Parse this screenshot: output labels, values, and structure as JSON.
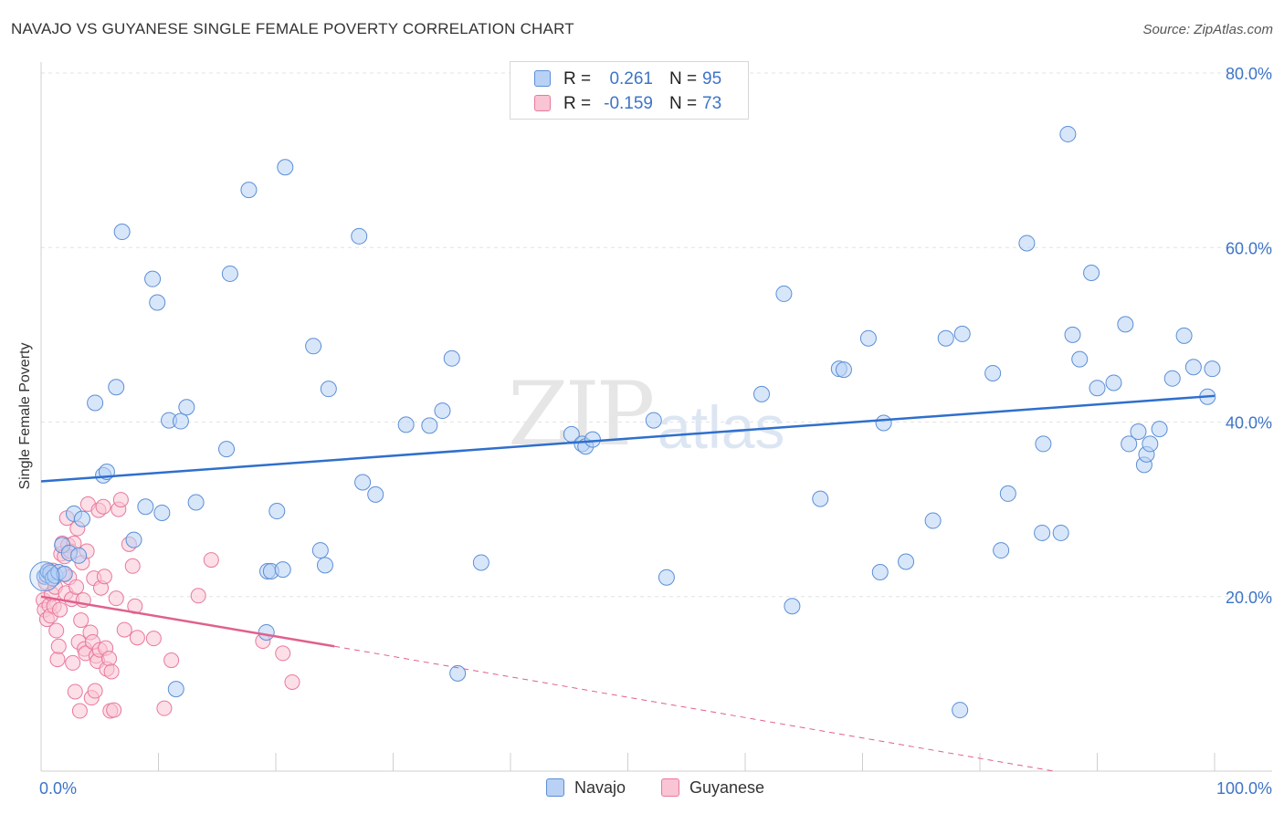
{
  "title": "NAVAJO VS GUYANESE SINGLE FEMALE POVERTY CORRELATION CHART",
  "source": "Source: ZipAtlas.com",
  "watermark": {
    "zip": "ZIP",
    "atlas": "atlas"
  },
  "legend": {
    "rows": [
      {
        "r_label": "R =",
        "r_value": "0.261",
        "n_label": "N =",
        "n_value": "95"
      },
      {
        "r_label": "R =",
        "r_value": "-0.159",
        "n_label": "N =",
        "n_value": "73"
      }
    ]
  },
  "bottom_legend": {
    "navajo": "Navajo",
    "guyanese": "Guyanese"
  },
  "colors": {
    "navajo_fill": "#b8d1f5",
    "navajo_stroke": "#5b8fd6",
    "navajo_line": "#2f6fcc",
    "guyanese_fill": "#f9c4d4",
    "guyanese_stroke": "#e8799d",
    "guyanese_line": "#e0608d",
    "tick_text": "#3d74c7"
  },
  "chart_data": {
    "type": "scatter",
    "title": "NAVAJO VS GUYANESE SINGLE FEMALE POVERTY CORRELATION CHART",
    "xlabel": "",
    "ylabel": "Single Female Poverty",
    "xlim": [
      0,
      100
    ],
    "ylim": [
      0,
      80
    ],
    "x_ticks": [
      {
        "value": 0,
        "label": "0.0%"
      },
      {
        "value": 100,
        "label": "100.0%"
      }
    ],
    "y_ticks": [
      {
        "value": 20,
        "label": "20.0%"
      },
      {
        "value": 40,
        "label": "40.0%"
      },
      {
        "value": 60,
        "label": "60.0%"
      },
      {
        "value": 80,
        "label": "80.0%"
      }
    ],
    "series": [
      {
        "name": "Navajo",
        "r": 0.261,
        "n": 95,
        "trend": {
          "x0": 0,
          "y0": 33.2,
          "x1": 100,
          "y1": 43.0,
          "dashed_to": null
        },
        "points": [
          [
            0.3,
            22.3
          ],
          [
            0.5,
            22.5
          ],
          [
            0.6,
            22.9
          ],
          [
            0.8,
            22.7
          ],
          [
            1.0,
            22.1
          ],
          [
            1.2,
            22.4
          ],
          [
            1.5,
            22.8
          ],
          [
            1.8,
            25.9
          ],
          [
            2.0,
            22.6
          ],
          [
            2.4,
            25.0
          ],
          [
            2.8,
            29.5
          ],
          [
            3.2,
            24.7
          ],
          [
            3.5,
            28.9
          ],
          [
            4.6,
            42.2
          ],
          [
            5.3,
            33.9
          ],
          [
            5.6,
            34.3
          ],
          [
            6.4,
            44.0
          ],
          [
            6.9,
            61.8
          ],
          [
            7.9,
            26.5
          ],
          [
            8.9,
            30.3
          ],
          [
            9.5,
            56.4
          ],
          [
            9.9,
            53.7
          ],
          [
            10.3,
            29.6
          ],
          [
            10.9,
            40.2
          ],
          [
            11.5,
            9.4
          ],
          [
            11.9,
            40.1
          ],
          [
            12.4,
            41.7
          ],
          [
            13.2,
            30.8
          ],
          [
            15.8,
            36.9
          ],
          [
            16.1,
            57.0
          ],
          [
            17.7,
            66.6
          ],
          [
            19.2,
            15.9
          ],
          [
            19.3,
            22.9
          ],
          [
            19.6,
            22.9
          ],
          [
            20.1,
            29.8
          ],
          [
            20.6,
            23.1
          ],
          [
            20.8,
            69.2
          ],
          [
            23.2,
            48.7
          ],
          [
            23.8,
            25.3
          ],
          [
            24.2,
            23.6
          ],
          [
            24.5,
            43.8
          ],
          [
            27.1,
            61.3
          ],
          [
            27.4,
            33.1
          ],
          [
            28.5,
            31.7
          ],
          [
            31.1,
            39.7
          ],
          [
            33.1,
            39.6
          ],
          [
            34.2,
            41.3
          ],
          [
            35.0,
            47.3
          ],
          [
            35.5,
            11.2
          ],
          [
            37.5,
            23.9
          ],
          [
            45.2,
            38.6
          ],
          [
            46.1,
            37.5
          ],
          [
            46.4,
            37.2
          ],
          [
            47.0,
            38.0
          ],
          [
            52.2,
            40.2
          ],
          [
            53.3,
            22.2
          ],
          [
            61.4,
            43.2
          ],
          [
            63.3,
            54.7
          ],
          [
            64.0,
            18.9
          ],
          [
            66.4,
            31.2
          ],
          [
            68.0,
            46.1
          ],
          [
            68.4,
            46.0
          ],
          [
            70.5,
            49.6
          ],
          [
            71.8,
            39.9
          ],
          [
            71.5,
            22.8
          ],
          [
            73.7,
            24.0
          ],
          [
            76.0,
            28.7
          ],
          [
            77.1,
            49.6
          ],
          [
            78.3,
            7.0
          ],
          [
            78.5,
            50.1
          ],
          [
            81.1,
            45.6
          ],
          [
            81.8,
            25.3
          ],
          [
            82.4,
            31.8
          ],
          [
            84.0,
            60.5
          ],
          [
            85.3,
            27.3
          ],
          [
            85.4,
            37.5
          ],
          [
            86.9,
            27.3
          ],
          [
            87.9,
            50.0
          ],
          [
            87.5,
            73.0
          ],
          [
            88.5,
            47.2
          ],
          [
            89.5,
            57.1
          ],
          [
            90.0,
            43.9
          ],
          [
            91.4,
            44.5
          ],
          [
            92.4,
            51.2
          ],
          [
            92.7,
            37.5
          ],
          [
            93.5,
            38.9
          ],
          [
            94.0,
            35.1
          ],
          [
            94.2,
            36.3
          ],
          [
            94.5,
            37.5
          ],
          [
            95.3,
            39.2
          ],
          [
            96.4,
            45.0
          ],
          [
            97.4,
            49.9
          ],
          [
            98.2,
            46.3
          ],
          [
            99.4,
            42.9
          ],
          [
            99.8,
            46.1
          ]
        ]
      },
      {
        "name": "Guyanese",
        "r": -0.159,
        "n": 73,
        "trend": {
          "x0": 0,
          "y0": 20.0,
          "x1": 25,
          "y1": 14.3,
          "dashed_to": {
            "x": 100,
            "y": -3.2
          }
        },
        "points": [
          [
            0.2,
            19.6
          ],
          [
            0.3,
            18.5
          ],
          [
            0.4,
            21.6
          ],
          [
            0.5,
            17.4
          ],
          [
            0.6,
            22.9
          ],
          [
            0.7,
            19.0
          ],
          [
            0.8,
            17.8
          ],
          [
            0.9,
            20.3
          ],
          [
            1.0,
            23.0
          ],
          [
            1.1,
            18.9
          ],
          [
            1.2,
            21.1
          ],
          [
            1.3,
            16.1
          ],
          [
            1.4,
            12.8
          ],
          [
            1.5,
            14.3
          ],
          [
            1.6,
            18.5
          ],
          [
            1.7,
            24.9
          ],
          [
            1.8,
            26.1
          ],
          [
            1.9,
            22.6
          ],
          [
            2.0,
            24.6
          ],
          [
            2.1,
            20.4
          ],
          [
            2.2,
            29.0
          ],
          [
            2.3,
            25.9
          ],
          [
            2.4,
            22.2
          ],
          [
            2.5,
            25.2
          ],
          [
            2.6,
            19.7
          ],
          [
            2.7,
            12.4
          ],
          [
            2.8,
            26.1
          ],
          [
            2.9,
            9.1
          ],
          [
            3.0,
            21.1
          ],
          [
            3.1,
            27.8
          ],
          [
            3.2,
            14.8
          ],
          [
            3.3,
            6.9
          ],
          [
            3.4,
            17.3
          ],
          [
            3.5,
            23.9
          ],
          [
            3.6,
            19.6
          ],
          [
            3.7,
            14.0
          ],
          [
            3.8,
            13.5
          ],
          [
            3.9,
            25.2
          ],
          [
            4.0,
            30.6
          ],
          [
            4.2,
            15.9
          ],
          [
            4.3,
            8.4
          ],
          [
            4.4,
            14.8
          ],
          [
            4.5,
            22.1
          ],
          [
            4.6,
            9.2
          ],
          [
            4.7,
            13.2
          ],
          [
            4.8,
            12.6
          ],
          [
            4.9,
            29.9
          ],
          [
            5.0,
            13.9
          ],
          [
            5.1,
            21.0
          ],
          [
            5.3,
            30.3
          ],
          [
            5.4,
            22.3
          ],
          [
            5.5,
            14.1
          ],
          [
            5.6,
            11.7
          ],
          [
            5.8,
            12.9
          ],
          [
            5.9,
            6.9
          ],
          [
            6.0,
            11.4
          ],
          [
            6.2,
            7.0
          ],
          [
            6.4,
            19.8
          ],
          [
            6.6,
            30.0
          ],
          [
            6.8,
            31.1
          ],
          [
            7.1,
            16.2
          ],
          [
            7.5,
            26.0
          ],
          [
            7.8,
            23.5
          ],
          [
            8.0,
            18.9
          ],
          [
            8.2,
            15.3
          ],
          [
            9.6,
            15.2
          ],
          [
            10.5,
            7.2
          ],
          [
            11.1,
            12.7
          ],
          [
            13.4,
            20.1
          ],
          [
            14.5,
            24.2
          ],
          [
            18.9,
            14.9
          ],
          [
            20.6,
            13.5
          ],
          [
            21.4,
            10.2
          ]
        ]
      }
    ]
  }
}
